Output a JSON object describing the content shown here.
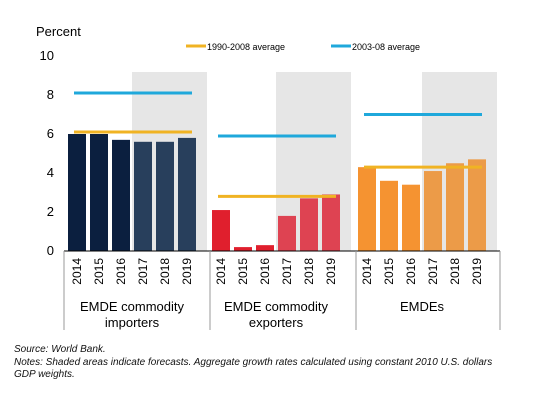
{
  "chart_data": {
    "type": "bar",
    "ylabel": "Percent",
    "ylim": [
      0,
      10
    ],
    "yticks": [
      0,
      2,
      4,
      6,
      8,
      10
    ],
    "grid": false,
    "legend_placement": "top",
    "legend": [
      {
        "label": "1990-2008 average",
        "color": "#F0B323"
      },
      {
        "label": "2003-08 average",
        "color": "#1FA8DB"
      }
    ],
    "groups": [
      {
        "name": "EMDE commodity importers",
        "label_lines": [
          "EMDE commodity",
          "importers"
        ],
        "years": [
          "2014",
          "2015",
          "2016",
          "2017",
          "2018",
          "2019"
        ],
        "values": [
          6.0,
          6.0,
          5.7,
          5.6,
          5.6,
          5.8
        ],
        "color": "#0B1F3F",
        "forecast_color": "#283F5C",
        "avg_1990_2008": 6.1,
        "avg_2003_08": 8.1
      },
      {
        "name": "EMDE commodity exporters",
        "label_lines": [
          "EMDE commodity",
          "exporters"
        ],
        "years": [
          "2014",
          "2015",
          "2016",
          "2017",
          "2018",
          "2019"
        ],
        "values": [
          2.1,
          0.2,
          0.3,
          1.8,
          2.7,
          2.9
        ],
        "color": "#E01F2D",
        "forecast_color": "#DE4352",
        "avg_1990_2008": 2.8,
        "avg_2003_08": 5.9
      },
      {
        "name": "EMDEs",
        "label_lines": [
          "EMDEs"
        ],
        "years": [
          "2014",
          "2015",
          "2016",
          "2017",
          "2018",
          "2019"
        ],
        "values": [
          4.3,
          3.6,
          3.4,
          4.1,
          4.5,
          4.7
        ],
        "color": "#F59331",
        "forecast_color": "#EC9B48",
        "avg_1990_2008": 4.3,
        "avg_2003_08": 7.0
      }
    ],
    "forecast_years": [
      "2017",
      "2018",
      "2019"
    ],
    "shading_color": "#E6E6E6"
  },
  "notes": {
    "source": "Source: World Bank.",
    "text": "Notes: Shaded areas indicate forecasts. Aggregate growth rates calculated using constant 2010 U.S. dollars GDP weights."
  }
}
